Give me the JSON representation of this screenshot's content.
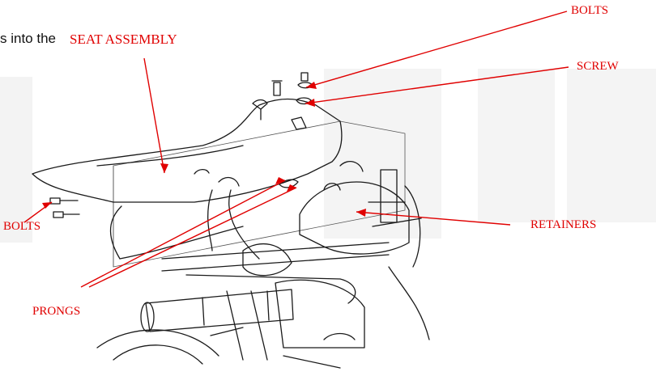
{
  "intro_text": "s into the",
  "callouts": {
    "seat_assembly": "SEAT ASSEMBLY",
    "bolts_top": "BOLTS",
    "screw": "SCREW",
    "retainers": "RETAINERS",
    "bolts_left": "BOLTS",
    "prongs": "PRONGS"
  },
  "colors": {
    "callout_red": "#e00000",
    "line_art": "#1a1a1a",
    "watermark": "#f2f2f2"
  }
}
